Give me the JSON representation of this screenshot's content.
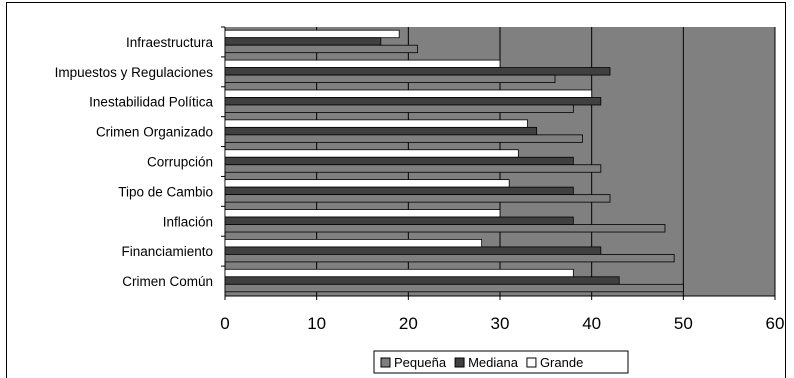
{
  "chart_data": {
    "type": "bar",
    "orientation": "horizontal",
    "title": "",
    "xlabel": "",
    "ylabel": "",
    "categories": [
      "Infraestructura",
      "Impuestos y Regulaciones",
      "Inestabilidad Política",
      "Crimen Organizado",
      "Corrupción",
      "Tipo de Cambio",
      "Inflación",
      "Financiamiento",
      "Crimen Común"
    ],
    "series": [
      {
        "name": "Pequeña",
        "color": "#7f7f7f",
        "values": [
          21,
          36,
          38,
          39,
          41,
          42,
          48,
          49,
          50
        ]
      },
      {
        "name": "Mediana",
        "color": "#404040",
        "values": [
          17,
          42,
          41,
          34,
          38,
          38,
          38,
          41,
          43
        ]
      },
      {
        "name": "Grande",
        "color": "#ffffff",
        "values": [
          19,
          30,
          40,
          33,
          32,
          31,
          30,
          28,
          38
        ]
      }
    ],
    "xlim": [
      0,
      60
    ],
    "xticks": [
      "0",
      "10",
      "20",
      "30",
      "40",
      "50",
      "60"
    ],
    "grid": true,
    "plot_background": "#808080",
    "legend_position": "bottom"
  }
}
